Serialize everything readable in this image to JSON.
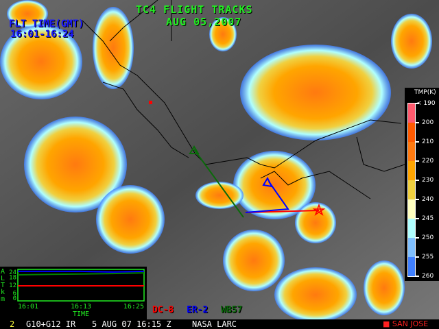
{
  "header": {
    "title": "TC4 FLIGHT TRACKS",
    "date": "AUG 05,2007"
  },
  "flight_time": {
    "label": "FLT TIME(GMT)",
    "range": "16:01-16:24"
  },
  "colorbar": {
    "title": "TMP(K)",
    "labels": [
      "< 190",
      "200",
      "210",
      "220",
      "230",
      "240",
      "245",
      "250",
      "255",
      "260"
    ],
    "colors": [
      "#ff5a6e",
      "#ff5a00",
      "#ff7a10",
      "#ffa500",
      "#f0d040",
      "#ffffc0",
      "#b0ffff",
      "#80c0ff",
      "#4080ff"
    ]
  },
  "legend": [
    {
      "name": "DC-8",
      "color": "#ff0000"
    },
    {
      "name": "ER-2",
      "color": "#0000ff"
    },
    {
      "name": "WB57",
      "color": "#008000"
    }
  ],
  "status_bar": {
    "frame": "2",
    "sensor": "G10+G12 IR",
    "datetime": "5 AUG 07 16:15 Z",
    "source": "NASA LARC",
    "marker_label": "SAN JOSE"
  },
  "chart_data": {
    "type": "line",
    "xlabel": "TIME",
    "ylabel": "ALT km",
    "x_ticks": [
      "16:01",
      "16:13",
      "16:25"
    ],
    "y_ticks": [
      "0",
      "6",
      "12",
      "18",
      "24"
    ],
    "ylim": [
      0,
      24
    ],
    "series": [
      {
        "name": "ER-2",
        "color": "#0000ff",
        "x": [
          "16:01",
          "16:13",
          "16:19",
          "16:25"
        ],
        "values": [
          22.5,
          22.5,
          22.0,
          22.5
        ]
      },
      {
        "name": "WB57",
        "color": "#008000",
        "x": [
          "16:01",
          "16:07",
          "16:13",
          "16:19",
          "16:25"
        ],
        "values": [
          19.8,
          20.2,
          20.5,
          20.8,
          21.3
        ]
      },
      {
        "name": "DC-8",
        "color": "#ff0000",
        "x": [
          "16:01",
          "16:25"
        ],
        "values": [
          11.5,
          11.5
        ]
      }
    ]
  }
}
